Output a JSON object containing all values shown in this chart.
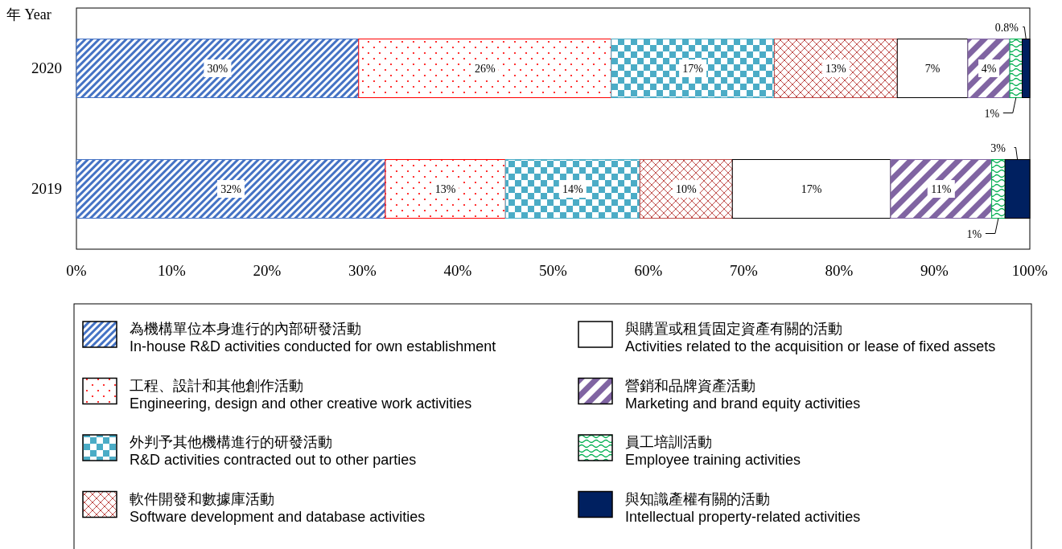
{
  "chart_data": {
    "type": "bar",
    "orientation": "horizontal",
    "stacked": true,
    "ylabel": "年 Year",
    "categories": [
      "2020",
      "2019"
    ],
    "xlim": [
      0,
      100
    ],
    "xticks": [
      {
        "value": 0,
        "label": "0%"
      },
      {
        "value": 10,
        "label": "10%"
      },
      {
        "value": 20,
        "label": "20%"
      },
      {
        "value": 30,
        "label": "30%"
      },
      {
        "value": 40,
        "label": "40%"
      },
      {
        "value": 50,
        "label": "50%"
      },
      {
        "value": 60,
        "label": "60%"
      },
      {
        "value": 70,
        "label": "70%"
      },
      {
        "value": 80,
        "label": "80%"
      },
      {
        "value": 90,
        "label": "90%"
      },
      {
        "value": 100,
        "label": "100%"
      }
    ],
    "grid": false,
    "legend": "bottom",
    "series": [
      {
        "name": "為機構單位本身進行的內部研發活動\nIn-house R&D activities conducted for own establishment",
        "color": "#4472c4",
        "values": [
          29.6,
          32.4
        ],
        "value_labels": [
          "30%",
          "32%"
        ]
      },
      {
        "name": "工程、設計和其他創作活動\nEngineering, design and other creative work activities",
        "color": "#ff0000",
        "values": [
          26.5,
          12.6
        ],
        "value_labels": [
          "26%",
          "13%"
        ]
      },
      {
        "name": "外判予其他機構進行的研發活動\nR&D activities contracted out to other parties",
        "color": "#4bacc6",
        "values": [
          17.1,
          14.1
        ],
        "value_labels": [
          "17%",
          "14%"
        ]
      },
      {
        "name": "軟件開發和數據庫活動\nSoftware development and database activities",
        "color": "#c0504d",
        "values": [
          12.9,
          9.7
        ],
        "value_labels": [
          "13%",
          "10%"
        ]
      },
      {
        "name": "與購置或租賃固定資產有關的活動\nActivities related to the acquisition or lease of fixed assets",
        "color": "#ffffff",
        "values": [
          7.4,
          16.6
        ],
        "value_labels": [
          "7%",
          "17%"
        ]
      },
      {
        "name": "營銷和品牌資產活動\nMarketing and brand equity activities",
        "color": "#8064a2",
        "values": [
          4.4,
          10.6
        ],
        "value_labels": [
          "4%",
          "11%"
        ]
      },
      {
        "name": "員工培訓活動\nEmployee training activities",
        "color": "#00b050",
        "values": [
          1.3,
          1.4
        ],
        "value_labels": [
          "1%",
          "1%"
        ]
      },
      {
        "name": "與知識產權有關的活動\nIntellectual property-related activities",
        "color": "#002060",
        "values": [
          0.8,
          2.6
        ],
        "value_labels": [
          "0.8%",
          "3%"
        ]
      }
    ]
  }
}
